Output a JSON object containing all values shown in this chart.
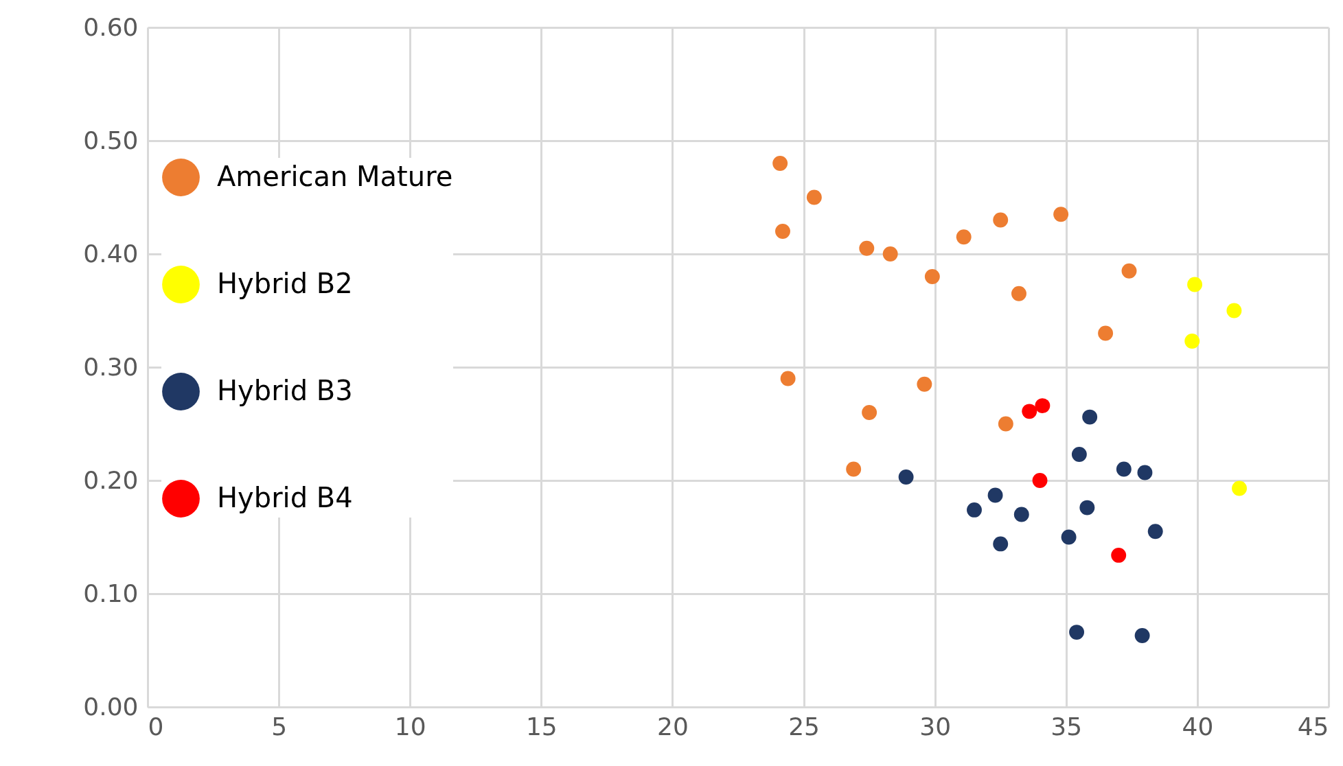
{
  "chart_data": {
    "type": "scatter",
    "xlim": [
      0,
      45
    ],
    "xticks": [
      0,
      5,
      10,
      15,
      20,
      25,
      30,
      35,
      40,
      45
    ],
    "ylim": [
      0,
      0.6
    ],
    "yticks": [
      {
        "value": 0,
        "label": "0.00"
      },
      {
        "value": 0.1,
        "label": "0.10"
      },
      {
        "value": 0.2,
        "label": "0.20"
      },
      {
        "value": 0.3,
        "label": "0.30"
      },
      {
        "value": 0.4,
        "label": "0.40"
      },
      {
        "value": 0.5,
        "label": "0.50"
      },
      {
        "value": 0.6,
        "label": "0.60"
      }
    ],
    "grid": true,
    "legend": "left",
    "marker": "circle",
    "series": [
      {
        "name": "American Mature",
        "color": "#ed7d31",
        "x": [
          24.1,
          25.4,
          24.2,
          27.4,
          28.3,
          29.9,
          31.1,
          32.5,
          34.8,
          33.2,
          37.4,
          36.5,
          24.4,
          29.6,
          27.5,
          32.7,
          26.9
        ],
        "values": [
          0.48,
          0.45,
          0.42,
          0.405,
          0.4,
          0.38,
          0.415,
          0.43,
          0.435,
          0.365,
          0.385,
          0.33,
          0.29,
          0.285,
          0.26,
          0.25,
          0.21
        ]
      },
      {
        "name": "Hybrid B2",
        "color": "#ffff00",
        "x": [
          39.9,
          41.4,
          39.8,
          41.6
        ],
        "values": [
          0.373,
          0.35,
          0.323,
          0.193
        ]
      },
      {
        "name": "Hybrid B3",
        "color": "#203864",
        "x": [
          35.9,
          35.5,
          37.2,
          38.0,
          28.9,
          32.3,
          31.5,
          33.3,
          35.8,
          32.5,
          35.1,
          38.4,
          35.4,
          37.9
        ],
        "values": [
          0.256,
          0.223,
          0.21,
          0.207,
          0.203,
          0.187,
          0.174,
          0.17,
          0.176,
          0.144,
          0.15,
          0.155,
          0.066,
          0.063
        ]
      },
      {
        "name": "Hybrid B4",
        "color": "#ff0000",
        "x": [
          33.6,
          34.1,
          34.0,
          37.0
        ],
        "values": [
          0.261,
          0.266,
          0.2,
          0.134
        ]
      }
    ]
  }
}
